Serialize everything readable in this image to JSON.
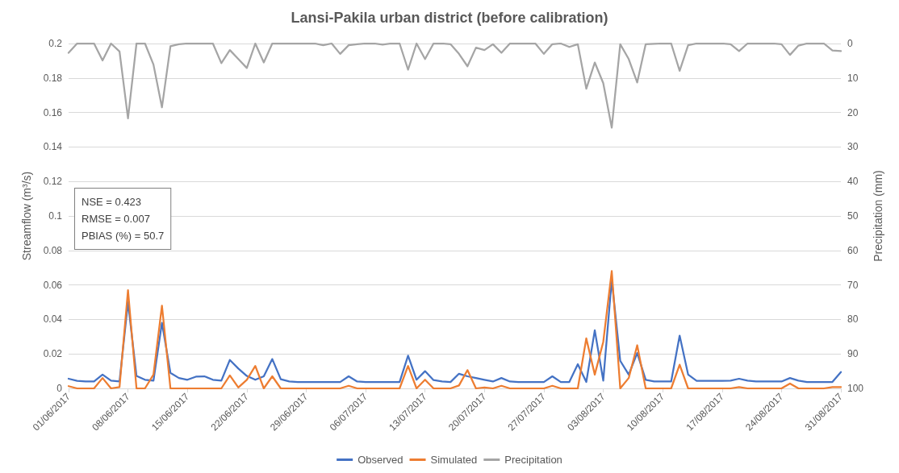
{
  "chart_data": {
    "type": "line",
    "title": "Lansi-Pakila urban district (before calibration)",
    "ylabel": "Streamflow (m³/s)",
    "y2label": "Precipitation (mm)",
    "x": [
      "2017-06-01",
      "2017-06-02",
      "2017-06-03",
      "2017-06-04",
      "2017-06-05",
      "2017-06-06",
      "2017-06-07",
      "2017-06-08",
      "2017-06-09",
      "2017-06-10",
      "2017-06-11",
      "2017-06-12",
      "2017-06-13",
      "2017-06-14",
      "2017-06-15",
      "2017-06-16",
      "2017-06-17",
      "2017-06-18",
      "2017-06-19",
      "2017-06-20",
      "2017-06-21",
      "2017-06-22",
      "2017-06-23",
      "2017-06-24",
      "2017-06-25",
      "2017-06-26",
      "2017-06-27",
      "2017-06-28",
      "2017-06-29",
      "2017-06-30",
      "2017-07-01",
      "2017-07-02",
      "2017-07-03",
      "2017-07-04",
      "2017-07-05",
      "2017-07-06",
      "2017-07-07",
      "2017-07-08",
      "2017-07-09",
      "2017-07-10",
      "2017-07-11",
      "2017-07-12",
      "2017-07-13",
      "2017-07-14",
      "2017-07-15",
      "2017-07-16",
      "2017-07-17",
      "2017-07-18",
      "2017-07-19",
      "2017-07-20",
      "2017-07-21",
      "2017-07-22",
      "2017-07-23",
      "2017-07-24",
      "2017-07-25",
      "2017-07-26",
      "2017-07-27",
      "2017-07-28",
      "2017-07-29",
      "2017-07-30",
      "2017-07-31",
      "2017-08-01",
      "2017-08-02",
      "2017-08-03",
      "2017-08-04",
      "2017-08-05",
      "2017-08-06",
      "2017-08-07",
      "2017-08-08",
      "2017-08-09",
      "2017-08-10",
      "2017-08-11",
      "2017-08-12",
      "2017-08-13",
      "2017-08-14",
      "2017-08-15",
      "2017-08-16",
      "2017-08-17",
      "2017-08-18",
      "2017-08-19",
      "2017-08-20",
      "2017-08-21",
      "2017-08-22",
      "2017-08-23",
      "2017-08-24",
      "2017-08-25",
      "2017-08-26",
      "2017-08-27",
      "2017-08-28",
      "2017-08-29",
      "2017-08-30",
      "2017-08-31"
    ],
    "series": [
      {
        "name": "Observed",
        "color": "#4472c4",
        "values": [
          0.0056,
          0.0044,
          0.004,
          0.004,
          0.008,
          0.0045,
          0.004,
          0.05,
          0.0072,
          0.005,
          0.0045,
          0.038,
          0.009,
          0.006,
          0.005,
          0.0068,
          0.007,
          0.005,
          0.0045,
          0.0165,
          0.0115,
          0.0072,
          0.005,
          0.007,
          0.017,
          0.0053,
          0.004,
          0.0037,
          0.0037,
          0.0037,
          0.0037,
          0.0037,
          0.0037,
          0.007,
          0.004,
          0.0037,
          0.0037,
          0.0037,
          0.0037,
          0.0037,
          0.019,
          0.005,
          0.01,
          0.0048,
          0.004,
          0.0037,
          0.0085,
          0.007,
          0.006,
          0.005,
          0.004,
          0.006,
          0.004,
          0.0037,
          0.0037,
          0.0037,
          0.0037,
          0.007,
          0.0037,
          0.0037,
          0.014,
          0.0037,
          0.0337,
          0.0045,
          0.063,
          0.016,
          0.008,
          0.0205,
          0.005,
          0.004,
          0.004,
          0.004,
          0.0306,
          0.008,
          0.0044,
          0.0044,
          0.0044,
          0.0044,
          0.0045,
          0.0056,
          0.0045,
          0.004,
          0.004,
          0.004,
          0.004,
          0.006,
          0.0045,
          0.0037,
          0.0037,
          0.0037,
          0.0037,
          0.0095
        ]
      },
      {
        "name": "Simulated",
        "color": "#ed7d31",
        "values": [
          0.0013,
          0,
          0,
          0,
          0.006,
          0,
          0.0008,
          0.057,
          0,
          0,
          0.008,
          0.048,
          0,
          0,
          0,
          0,
          0,
          0,
          0,
          0.0075,
          0.0005,
          0.005,
          0.013,
          0,
          0.007,
          0,
          0,
          0,
          0,
          0,
          0,
          0,
          0,
          0.0015,
          0,
          0,
          0,
          0,
          0,
          0,
          0.013,
          0,
          0.005,
          0,
          0,
          0,
          0.0017,
          0.0106,
          0,
          0.0005,
          0,
          0.0015,
          0,
          0,
          0,
          0,
          0,
          0.0015,
          0,
          0,
          0,
          0.029,
          0.008,
          0.027,
          0.068,
          0,
          0.006,
          0.025,
          0,
          0,
          0,
          0,
          0.0137,
          0,
          0,
          0,
          0,
          0,
          0,
          0.0008,
          0,
          0,
          0,
          0,
          0,
          0.0028,
          0,
          0,
          0,
          0,
          0.0008,
          0.0008
        ]
      },
      {
        "name": "Precipitation",
        "color": "#a5a5a5",
        "axis": "y2",
        "values": [
          2.7,
          0,
          0,
          0,
          4.9,
          0,
          2.3,
          21.7,
          0,
          0,
          6.1,
          18.5,
          0.8,
          0.2,
          0,
          0,
          0,
          0,
          5.7,
          1.9,
          4.5,
          7.1,
          0,
          5.5,
          0,
          0,
          0,
          0,
          0,
          0,
          0.5,
          0,
          3,
          0.5,
          0.2,
          0,
          0,
          0.3,
          0,
          0,
          7.6,
          0,
          4.5,
          0,
          0,
          0.2,
          3,
          6.6,
          1.2,
          1.9,
          0.2,
          2.7,
          0,
          0,
          0,
          0,
          3,
          0.2,
          0,
          1,
          0.2,
          13.1,
          5.5,
          11.5,
          24.4,
          0.2,
          4.5,
          11.3,
          0.2,
          0.1,
          0,
          0,
          7.9,
          0.5,
          0,
          0,
          0,
          0,
          0.2,
          2.2,
          0,
          0,
          0,
          0,
          0.2,
          3.3,
          0.6,
          0,
          0,
          0,
          2,
          2.2
        ]
      }
    ],
    "xlim": [
      "2017-06-01",
      "2017-08-31"
    ],
    "xticks": [
      {
        "value": "2017-06-01",
        "label": "01/06/2017"
      },
      {
        "value": "2017-06-08",
        "label": "08/06/2017"
      },
      {
        "value": "2017-06-15",
        "label": "15/06/2017"
      },
      {
        "value": "2017-06-22",
        "label": "22/06/2017"
      },
      {
        "value": "2017-06-29",
        "label": "29/06/2017"
      },
      {
        "value": "2017-07-06",
        "label": "06/07/2017"
      },
      {
        "value": "2017-07-13",
        "label": "13/07/2017"
      },
      {
        "value": "2017-07-20",
        "label": "20/07/2017"
      },
      {
        "value": "2017-07-27",
        "label": "27/07/2017"
      },
      {
        "value": "2017-08-03",
        "label": "03/08/2017"
      },
      {
        "value": "2017-08-10",
        "label": "10/08/2017"
      },
      {
        "value": "2017-08-17",
        "label": "17/08/2017"
      },
      {
        "value": "2017-08-24",
        "label": "24/08/2017"
      },
      {
        "value": "2017-08-31",
        "label": "31/08/2017"
      }
    ],
    "ylim": [
      0,
      0.2
    ],
    "yticks": [
      0,
      0.02,
      0.04,
      0.06,
      0.08,
      0.1,
      0.12,
      0.14,
      0.16,
      0.18,
      0.2
    ],
    "y2lim": [
      100,
      0
    ],
    "y2ticks": [
      0,
      10,
      20,
      30,
      40,
      50,
      60,
      70,
      80,
      90,
      100
    ],
    "annotations": [
      "NSE = 0.423",
      "RMSE = 0.007",
      "PBIAS (%) = 50.7"
    ],
    "grid": "y",
    "legend": "bottom",
    "marker": "none",
    "line_style": "solid"
  }
}
